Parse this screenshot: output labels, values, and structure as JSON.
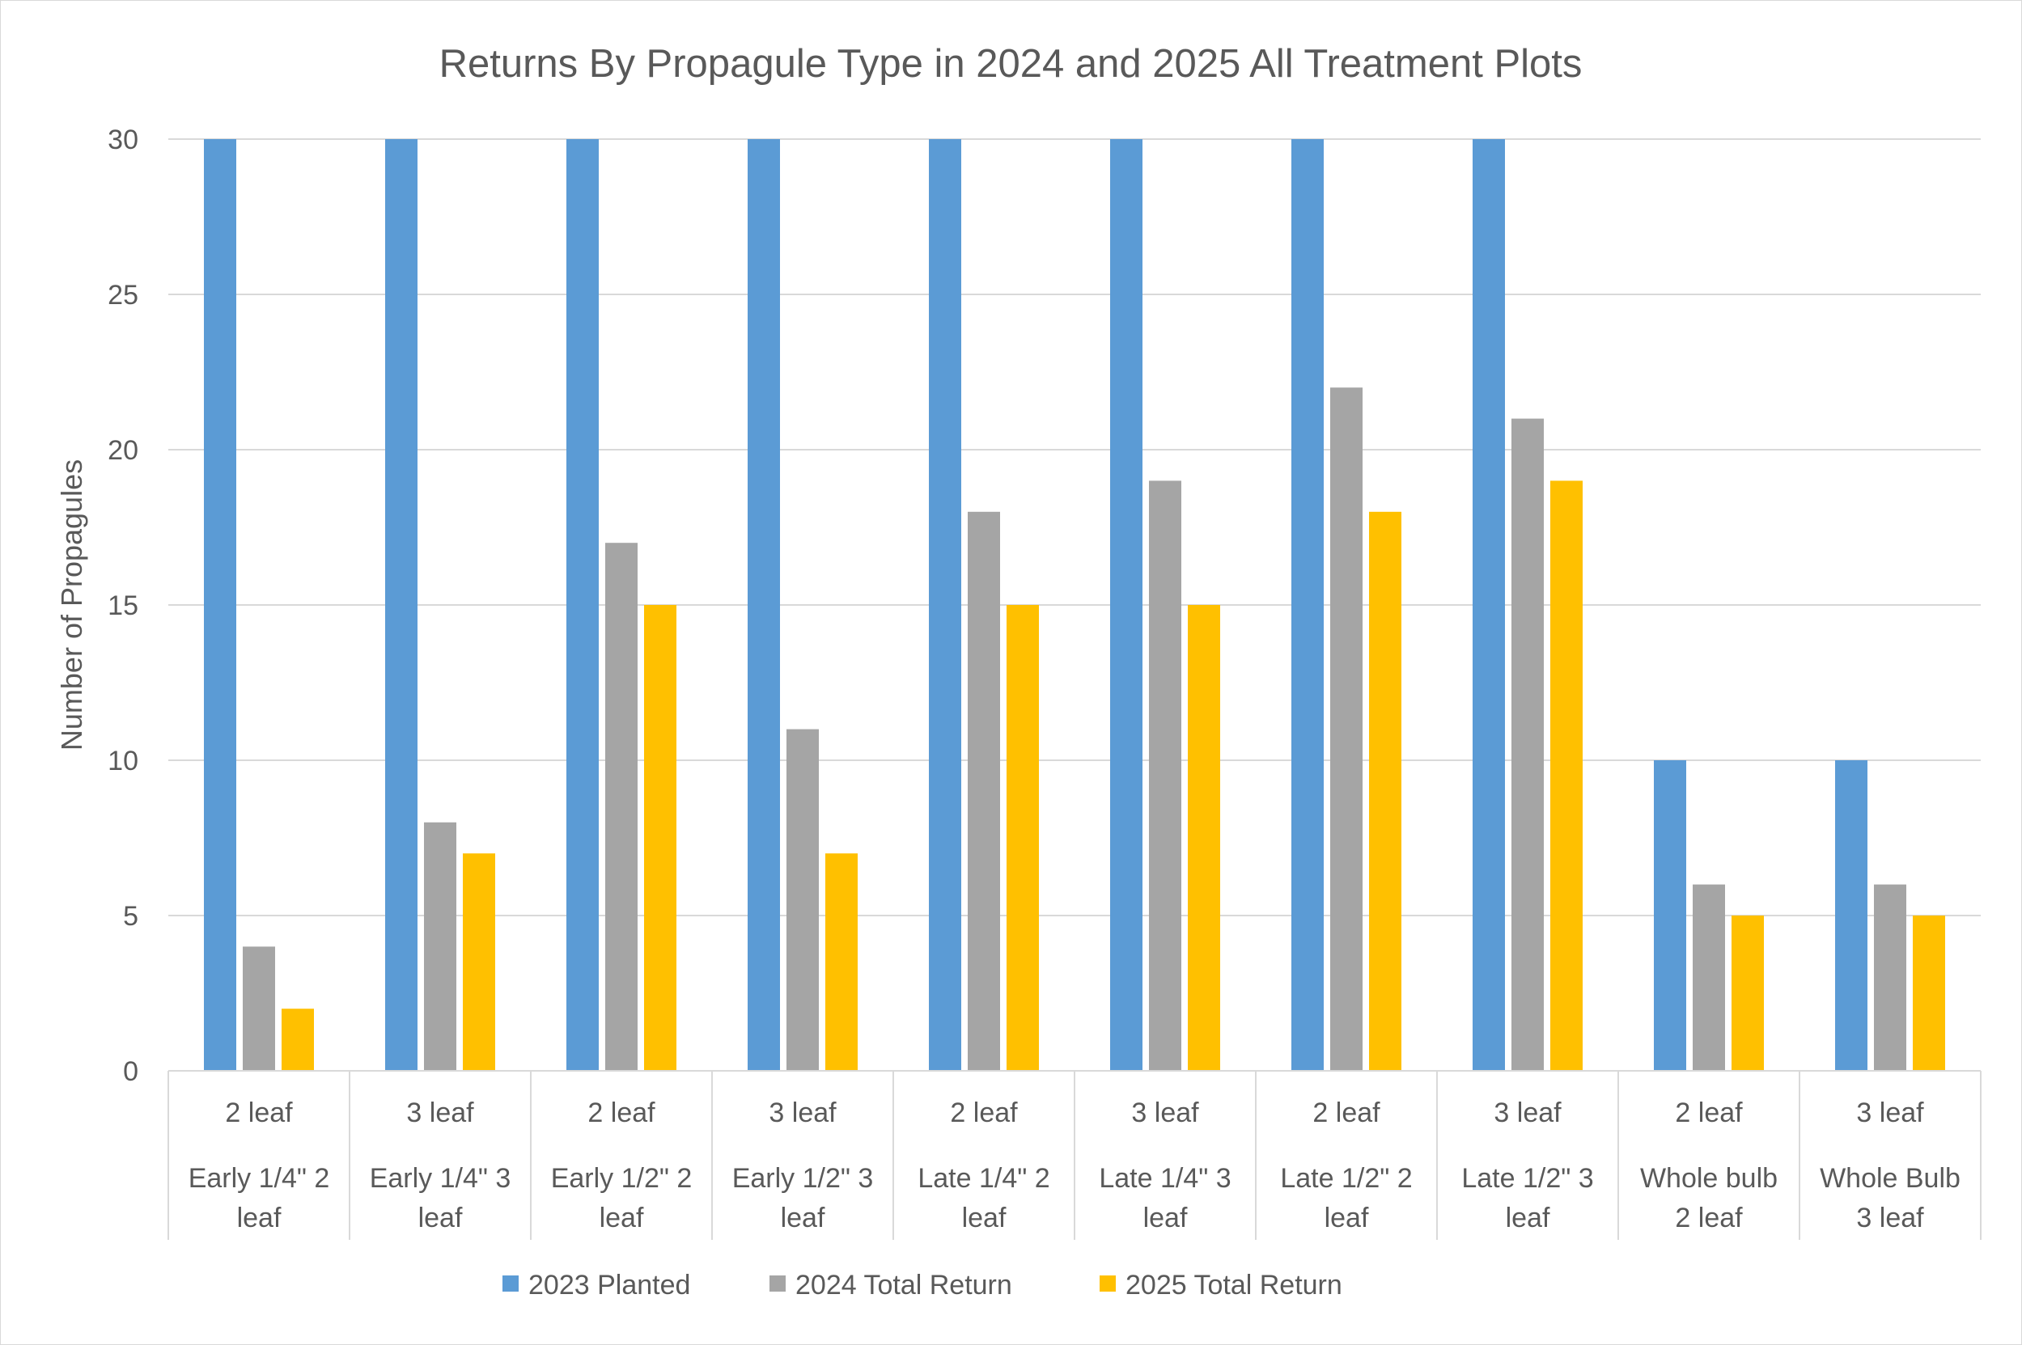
{
  "chart_data": {
    "type": "bar",
    "title": "Returns By Propagule Type in 2024 and 2025 All Treatment Plots",
    "ylabel": "Number of Propagules",
    "xlabel": "",
    "ylim": [
      0,
      30
    ],
    "yticks": [
      0,
      5,
      10,
      15,
      20,
      25,
      30
    ],
    "grid": "horizontal",
    "legend_position": "bottom",
    "categories": [
      {
        "inner": "2 leaf",
        "outer": [
          "Early 1/4\" 2",
          "leaf"
        ]
      },
      {
        "inner": "3 leaf",
        "outer": [
          "Early 1/4\" 3",
          "leaf"
        ]
      },
      {
        "inner": "2 leaf",
        "outer": [
          "Early 1/2\" 2",
          "leaf"
        ]
      },
      {
        "inner": "3 leaf",
        "outer": [
          "Early 1/2\" 3",
          "leaf"
        ]
      },
      {
        "inner": "2 leaf",
        "outer": [
          "Late 1/4\" 2",
          "leaf"
        ]
      },
      {
        "inner": "3 leaf",
        "outer": [
          "Late 1/4\" 3",
          "leaf"
        ]
      },
      {
        "inner": "2 leaf",
        "outer": [
          "Late 1/2\" 2",
          "leaf"
        ]
      },
      {
        "inner": "3 leaf",
        "outer": [
          "Late 1/2\" 3",
          "leaf"
        ]
      },
      {
        "inner": "2 leaf",
        "outer": [
          "Whole bulb",
          "2 leaf"
        ]
      },
      {
        "inner": "3 leaf",
        "outer": [
          "Whole Bulb",
          "3 leaf"
        ]
      }
    ],
    "series": [
      {
        "name": "2023 Planted",
        "color": "#5b9bd5",
        "values": [
          30,
          30,
          30,
          30,
          30,
          30,
          30,
          30,
          10,
          10
        ]
      },
      {
        "name": "2024 Total Return",
        "color": "#a5a5a5",
        "values": [
          4,
          8,
          17,
          11,
          18,
          19,
          22,
          21,
          6,
          6
        ]
      },
      {
        "name": "2025 Total Return",
        "color": "#ffc000",
        "values": [
          2,
          7,
          15,
          7,
          15,
          15,
          18,
          19,
          5,
          5
        ]
      }
    ]
  }
}
